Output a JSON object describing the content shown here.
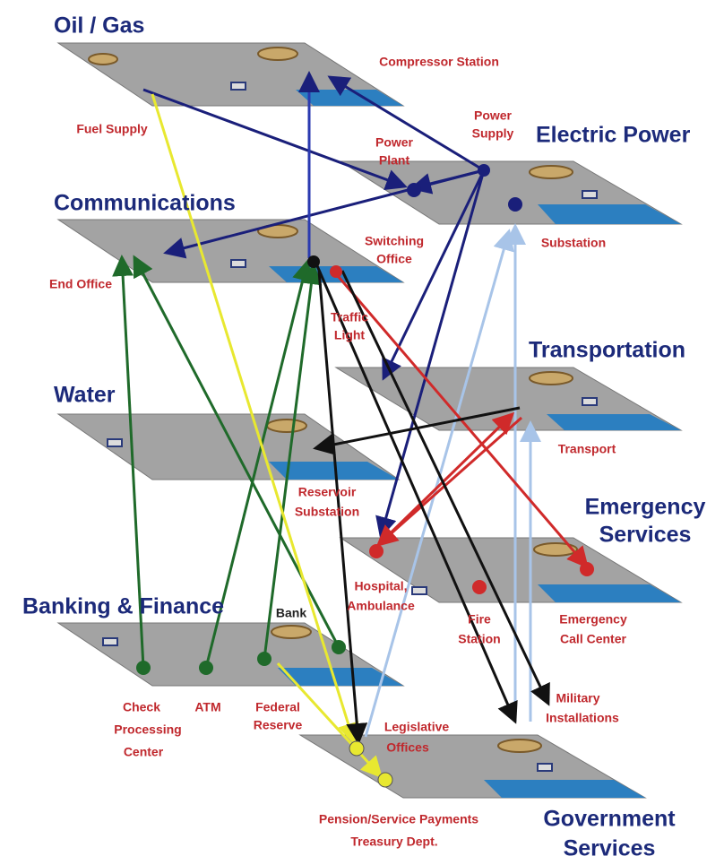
{
  "layers": [
    {
      "title": [
        "Oil / Gas"
      ],
      "nodes": [
        [
          "Compressor Station"
        ],
        [
          "Fuel Supply"
        ]
      ]
    },
    {
      "title": [
        "Electric Power"
      ],
      "nodes": [
        [
          "Power",
          "Plant"
        ],
        [
          "Power",
          "Supply"
        ],
        [
          "Substation"
        ]
      ]
    },
    {
      "title": [
        "Communications"
      ],
      "nodes": [
        [
          "Switching",
          "Office"
        ],
        [
          "End Office"
        ]
      ]
    },
    {
      "title": [
        "Transportation"
      ],
      "nodes": [
        [
          "Traffic",
          "Light"
        ],
        [
          "Transport"
        ]
      ]
    },
    {
      "title": [
        "Water"
      ],
      "nodes": [
        [
          "Reservoir",
          "Substation"
        ]
      ]
    },
    {
      "title": [
        "Emergency",
        "Services"
      ],
      "nodes": [
        [
          "Hospital,",
          "Ambulance"
        ],
        [
          "Fire",
          "Station"
        ],
        [
          "Emergency",
          "Call Center"
        ]
      ]
    },
    {
      "title": [
        "Banking & Finance"
      ],
      "nodes": [
        [
          "Bank"
        ],
        [
          "Check",
          "Processing",
          "Center"
        ],
        [
          "ATM"
        ],
        [
          "Federal",
          "Reserve"
        ]
      ]
    },
    {
      "title": [
        "Government",
        "Services"
      ],
      "nodes": [
        [
          "Legislative",
          "Offices"
        ],
        [
          "Military",
          "Installations"
        ],
        [
          "Pension/Service Payments",
          "Treasury Dept."
        ]
      ]
    }
  ]
}
